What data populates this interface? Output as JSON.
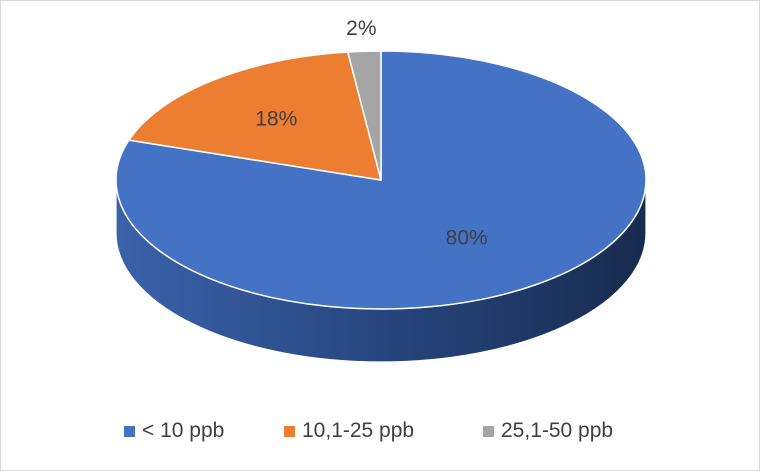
{
  "chart_data": {
    "type": "pie",
    "style": "3d",
    "categories": [
      "< 10 ppb",
      "10,1-25 ppb",
      "25,1-50 ppb"
    ],
    "values": [
      80,
      18,
      2
    ],
    "labels": [
      "80%",
      "18%",
      "2%"
    ],
    "colors": [
      "#4472c4",
      "#ed7d31",
      "#a5a5a5"
    ],
    "legend_position": "bottom"
  }
}
